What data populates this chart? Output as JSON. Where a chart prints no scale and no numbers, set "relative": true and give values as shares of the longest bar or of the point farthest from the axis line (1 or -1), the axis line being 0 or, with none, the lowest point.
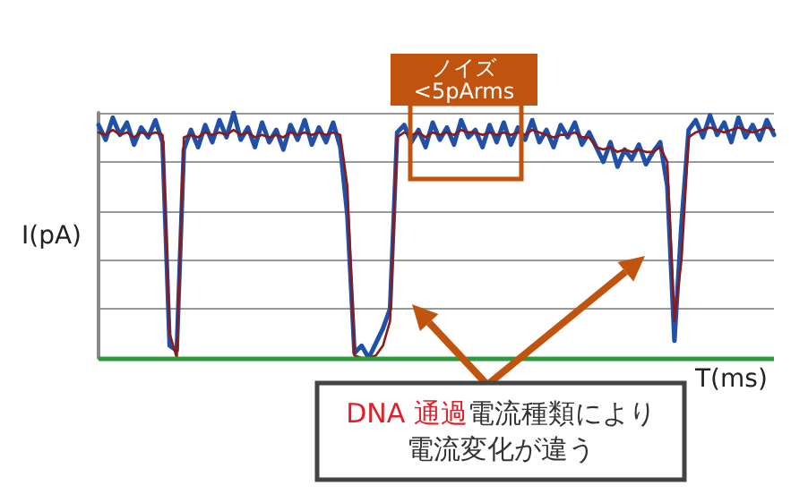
{
  "chart_data": {
    "type": "line",
    "relative": true,
    "ylabel": "I(pA)",
    "xlabel": "T(ms)",
    "grid": "y",
    "marker": "none",
    "line_style": "solid",
    "categories": [
      null,
      null,
      null,
      null,
      null,
      null,
      null,
      null,
      null,
      null,
      null,
      null,
      null,
      null,
      null,
      null,
      null,
      null,
      null,
      null,
      null,
      null,
      null,
      null,
      null,
      null,
      null,
      null,
      null,
      null,
      null,
      null,
      null,
      null,
      null,
      null,
      null,
      null,
      null,
      null,
      null,
      null,
      null,
      null,
      null,
      null,
      null,
      null,
      null,
      null,
      null,
      null,
      null,
      null,
      null,
      null,
      null,
      null,
      null,
      null,
      null,
      null,
      null,
      null,
      null,
      null,
      null,
      null,
      null,
      null,
      null,
      null,
      null,
      null,
      null,
      null,
      null,
      null,
      null,
      null,
      null,
      null,
      null,
      null,
      null,
      null,
      null,
      null,
      null,
      null,
      null,
      null,
      null,
      null,
      null,
      null
    ],
    "series": [
      {
        "color": "#2050a8",
        "values": [
          0.95,
          0.89,
          0.98,
          0.91,
          0.96,
          0.87,
          0.94,
          0.9,
          0.97,
          0.88,
          0.05,
          0.03,
          0.85,
          0.93,
          0.86,
          0.95,
          0.88,
          0.97,
          0.9,
          1.0,
          0.89,
          0.94,
          0.86,
          0.96,
          0.88,
          0.93,
          0.85,
          0.95,
          0.89,
          0.97,
          0.87,
          0.94,
          0.88,
          0.96,
          0.86,
          0.58,
          0.02,
          0.05,
          0.0,
          0.06,
          0.12,
          0.2,
          0.92,
          0.95,
          0.88,
          0.93,
          0.86,
          0.96,
          0.89,
          0.94,
          0.87,
          0.97,
          0.9,
          0.93,
          0.86,
          0.95,
          0.88,
          0.96,
          0.87,
          0.94,
          0.89,
          0.97,
          0.88,
          0.93,
          0.86,
          0.95,
          0.9,
          0.96,
          0.87,
          0.92,
          0.86,
          0.8,
          0.88,
          0.78,
          0.85,
          0.81,
          0.87,
          0.79,
          0.84,
          0.88,
          0.7,
          0.07,
          0.55,
          0.93,
          0.97,
          0.9,
          0.99,
          0.91,
          0.96,
          0.88,
          0.98,
          0.9,
          0.95,
          0.89,
          0.97,
          0.91
        ]
      },
      {
        "color": "#8b1a1a",
        "values": [
          0.92,
          0.91,
          0.93,
          0.91,
          0.92,
          0.9,
          0.92,
          0.91,
          0.92,
          0.91,
          0.1,
          0.0,
          0.9,
          0.91,
          0.9,
          0.92,
          0.91,
          0.92,
          0.91,
          0.93,
          0.91,
          0.92,
          0.9,
          0.91,
          0.9,
          0.91,
          0.9,
          0.92,
          0.91,
          0.92,
          0.91,
          0.92,
          0.91,
          0.92,
          0.91,
          0.7,
          0.01,
          0.0,
          0.0,
          0.01,
          0.05,
          0.15,
          0.9,
          0.92,
          0.91,
          0.92,
          0.9,
          0.92,
          0.91,
          0.92,
          0.91,
          0.93,
          0.92,
          0.92,
          0.91,
          0.92,
          0.91,
          0.92,
          0.91,
          0.92,
          0.91,
          0.93,
          0.92,
          0.91,
          0.9,
          0.91,
          0.91,
          0.92,
          0.9,
          0.9,
          0.86,
          0.85,
          0.86,
          0.84,
          0.85,
          0.84,
          0.85,
          0.84,
          0.84,
          0.86,
          0.8,
          0.15,
          0.4,
          0.9,
          0.92,
          0.93,
          0.94,
          0.93,
          0.92,
          0.93,
          0.94,
          0.93,
          0.92,
          0.93,
          0.94,
          0.93
        ]
      }
    ],
    "ref_lines": [
      {
        "axis": "y",
        "value": 0,
        "color": "#2e9a3e"
      }
    ],
    "annotations": [
      "ノイズ\n<5pArms",
      "DNA 通過",
      "電流種類により電流変化が違う"
    ]
  }
}
